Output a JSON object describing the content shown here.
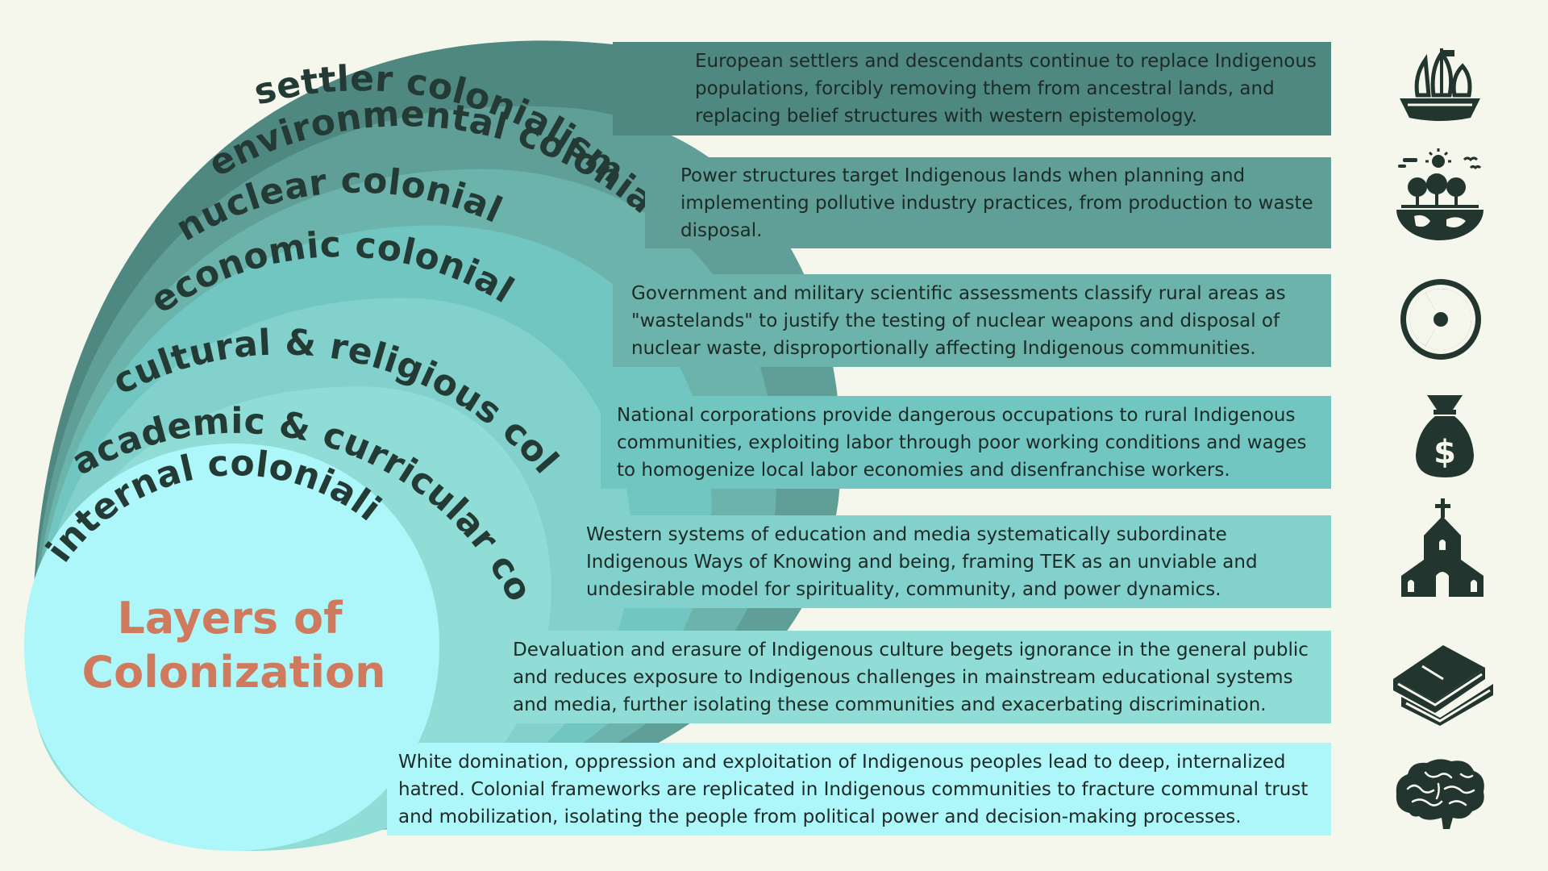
{
  "title": {
    "line1": "Layers of",
    "line2": "Colonization"
  },
  "colors": {
    "background": "#f6f7ec",
    "title": "#cf7a5c",
    "label": "#243b35",
    "icon": "#22352f"
  },
  "layers": [
    {
      "label": "settler colonialism",
      "description": "European settlers and descendants continue to replace Indigenous populations, forcibly removing them from ancestral lands, and replacing belief structures with western epistemology.",
      "icon": "sailing-ship-icon",
      "color": "#4e8880"
    },
    {
      "label": "environmental colonialism",
      "description": "Power structures target Indigenous lands when planning and implementing pollutive industry practices, from production to waste disposal.",
      "icon": "earth-trees-icon",
      "color": "#5f9f97"
    },
    {
      "label": "nuclear colonialism",
      "description": "Government and military scientific assessments classify rural areas as \"wastelands\" to justify the testing of nuclear weapons and disposal of nuclear waste, disproportionally affecting Indigenous communities.",
      "icon": "radiation-icon",
      "color": "#6bb3ab"
    },
    {
      "label": "economic colonialism",
      "description": "National corporations provide dangerous occupations to rural Indigenous communities, exploiting labor through poor working conditions and wages to homogenize local labor economies and disenfranchise workers.",
      "icon": "money-bag-icon",
      "color": "#72c6c2"
    },
    {
      "label": "cultural & religious colonialism",
      "description": "Western systems of education and media systematically subordinate Indigenous Ways of Knowing and being, framing TEK as an unviable and undesirable model for spirituality, community, and power dynamics.",
      "icon": "church-icon",
      "color": "#82d1cc"
    },
    {
      "label": "academic & curricular colonialism",
      "description": "Devaluation and erasure of Indigenous culture begets ignorance in the general public and reduces exposure to Indigenous challenges in mainstream educational systems and media, further isolating these communities and exacerbating discrimination.",
      "icon": "books-icon",
      "color": "#8fddd6"
    },
    {
      "label": "internal colonialism",
      "description": "White domination, oppression and exploitation of Indigenous peoples lead to deep, internalized hatred. Colonial frameworks are replicated in Indigenous communities to fracture communal trust and mobilization, isolating the people from political power and decision-making processes.",
      "icon": "brain-icon",
      "color": "#adf6f9"
    }
  ]
}
